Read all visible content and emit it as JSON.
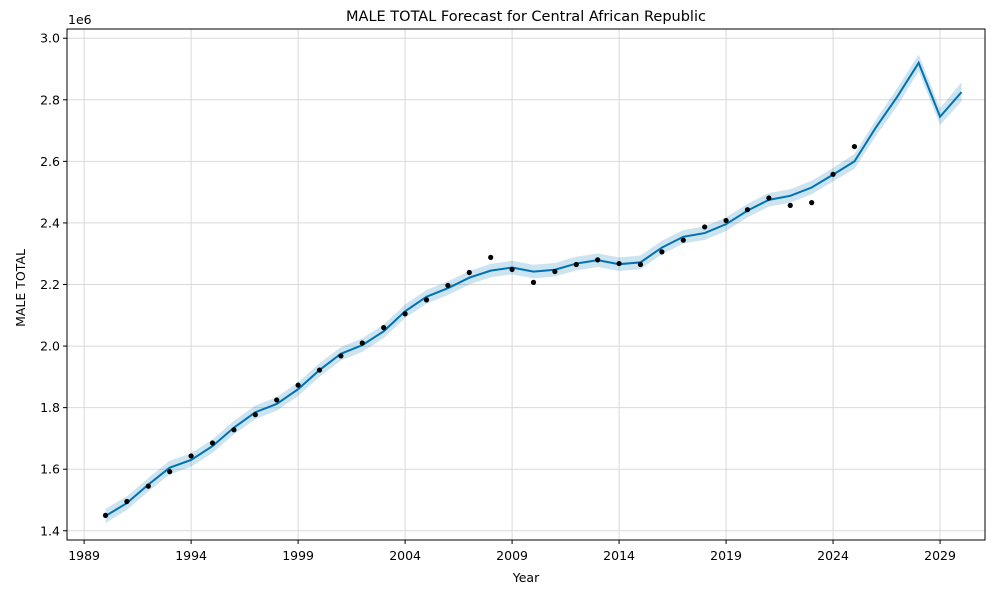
{
  "chart_data": {
    "type": "line",
    "title": "MALE TOTAL Forecast for Central African Republic",
    "xlabel": "Year",
    "ylabel": "MALE TOTAL",
    "y_offset_label": "1e6",
    "xlim": [
      1988.2,
      2031.1
    ],
    "ylim": [
      1370000,
      3030000
    ],
    "x_ticks": [
      1989,
      1994,
      1999,
      2004,
      2009,
      2014,
      2019,
      2024,
      2029
    ],
    "x_tick_labels": [
      "1989",
      "1994",
      "1999",
      "2004",
      "2009",
      "2014",
      "2019",
      "2024",
      "2029"
    ],
    "y_ticks": [
      1400000,
      1600000,
      1800000,
      2000000,
      2200000,
      2400000,
      2600000,
      2800000,
      3000000
    ],
    "y_tick_labels": [
      "1.4",
      "1.6",
      "1.8",
      "2.0",
      "2.2",
      "2.4",
      "2.6",
      "2.8",
      "3.0"
    ],
    "grid": true,
    "colors": {
      "forecast": "#0072b2",
      "interval": "#0072b2",
      "observed": "#000000",
      "grid": "#d9d9d9"
    },
    "observed": {
      "x": [
        1990,
        1991,
        1992,
        1993,
        1994,
        1995,
        1996,
        1997,
        1998,
        1999,
        2000,
        2001,
        2002,
        2003,
        2004,
        2005,
        2006,
        2007,
        2008,
        2009,
        2010,
        2011,
        2012,
        2013,
        2014,
        2015,
        2016,
        2017,
        2018,
        2019,
        2020,
        2021,
        2022,
        2023,
        2024,
        2025
      ],
      "y": [
        1450000,
        1495000,
        1545000,
        1592000,
        1643000,
        1685000,
        1728000,
        1777000,
        1825000,
        1873000,
        1922000,
        1968000,
        2010000,
        2060000,
        2105000,
        2150000,
        2197000,
        2239000,
        2288000,
        2249000,
        2207000,
        2242000,
        2265000,
        2280000,
        2268000,
        2265000,
        2306000,
        2344000,
        2387000,
        2408000,
        2443000,
        2481000,
        2457000,
        2466000,
        2558000,
        2648000
      ]
    },
    "forecast": {
      "x": [
        1990,
        1991,
        1992,
        1993,
        1994,
        1995,
        1996,
        1997,
        1998,
        1999,
        2000,
        2001,
        2002,
        2003,
        2004,
        2005,
        2006,
        2007,
        2008,
        2009,
        2010,
        2011,
        2012,
        2013,
        2014,
        2015,
        2016,
        2017,
        2018,
        2019,
        2020,
        2021,
        2022,
        2023,
        2024,
        2025,
        2026,
        2027,
        2028,
        2029,
        2030
      ],
      "y": [
        1448000,
        1490000,
        1550000,
        1605000,
        1630000,
        1675000,
        1735000,
        1785000,
        1812000,
        1860000,
        1922000,
        1975000,
        2003000,
        2048000,
        2113000,
        2160000,
        2188000,
        2222000,
        2245000,
        2255000,
        2242000,
        2248000,
        2268000,
        2279000,
        2266000,
        2272000,
        2320000,
        2355000,
        2367000,
        2396000,
        2440000,
        2475000,
        2488000,
        2515000,
        2557000,
        2600000,
        2710000,
        2810000,
        2920000,
        2745000,
        2825000
      ],
      "lower": [
        1425000,
        1468000,
        1528000,
        1583000,
        1608000,
        1653000,
        1713000,
        1763000,
        1790000,
        1838000,
        1900000,
        1953000,
        1981000,
        2026000,
        2091000,
        2138000,
        2166000,
        2200000,
        2223000,
        2233000,
        2220000,
        2226000,
        2246000,
        2257000,
        2244000,
        2250000,
        2298000,
        2333000,
        2345000,
        2374000,
        2418000,
        2453000,
        2466000,
        2493000,
        2535000,
        2576000,
        2683000,
        2780000,
        2893000,
        2718000,
        2795000
      ],
      "upper": [
        1471000,
        1512000,
        1572000,
        1627000,
        1652000,
        1697000,
        1757000,
        1807000,
        1834000,
        1882000,
        1944000,
        1997000,
        2025000,
        2070000,
        2135000,
        2182000,
        2210000,
        2244000,
        2267000,
        2277000,
        2264000,
        2270000,
        2290000,
        2301000,
        2288000,
        2294000,
        2342000,
        2377000,
        2389000,
        2418000,
        2462000,
        2497000,
        2510000,
        2537000,
        2579000,
        2624000,
        2735000,
        2838000,
        2947000,
        2772000,
        2857000
      ]
    }
  }
}
